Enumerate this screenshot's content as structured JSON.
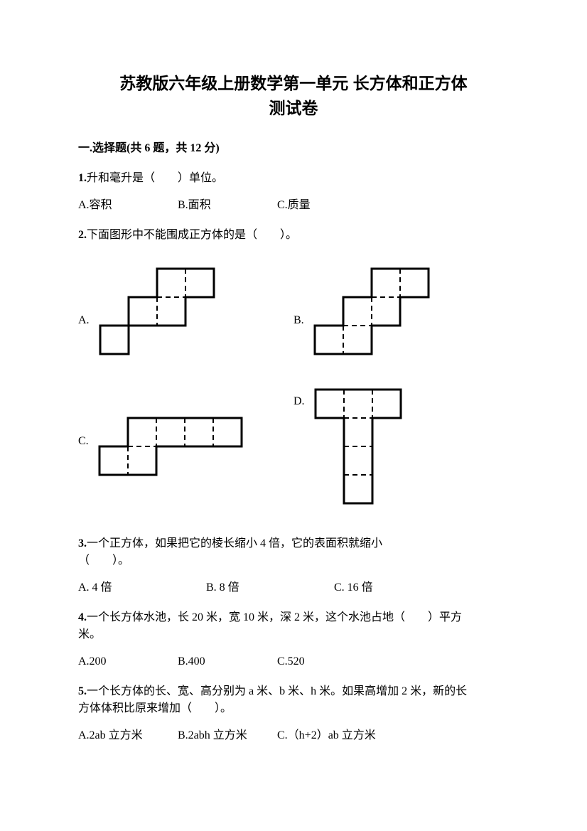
{
  "title_line1": "苏教版六年级上册数学第一单元 长方体和正方体",
  "title_line2": "测试卷",
  "section1": "一.选择题(共 6 题，共 12 分)",
  "q1": {
    "num": "1.",
    "text": "升和毫升是（　　）单位。",
    "a": "A.容积",
    "b": "B.面积",
    "c": "C.质量"
  },
  "q2": {
    "num": "2.",
    "text": "下面图形中不能围成正方体的是（　　）。",
    "labelA": "A.",
    "labelB": "B.",
    "labelC": "C.",
    "labelD": "D."
  },
  "q3": {
    "num": "3.",
    "text1": "一个正方体，如果把它的棱长缩小 4 倍，它的表面积就缩小",
    "text2": "（　　）。",
    "a": "A. 4 倍",
    "b": "B. 8 倍",
    "c": "C. 16 倍"
  },
  "q4": {
    "num": "4.",
    "text1": "一个长方体水池，长 20 米，宽 10 米，深 2 米，这个水池占地（　　）平方",
    "text2": "米。",
    "a": "A.200",
    "b": "B.400",
    "c": "C.520"
  },
  "q5": {
    "num": "5.",
    "text1": "一个长方体的长、宽、高分别为 a 米、b 米、h 米。如果高增加 2 米，新的长",
    "text2": "方体体积比原来增加（　　）。",
    "a": "A.2ab 立方米",
    "b": "B.2abh 立方米",
    "c": "C.（h+2）ab 立方米"
  },
  "stroke": "#000000",
  "sw_outer": 3,
  "sw_dash": 2,
  "dash": "8,5"
}
